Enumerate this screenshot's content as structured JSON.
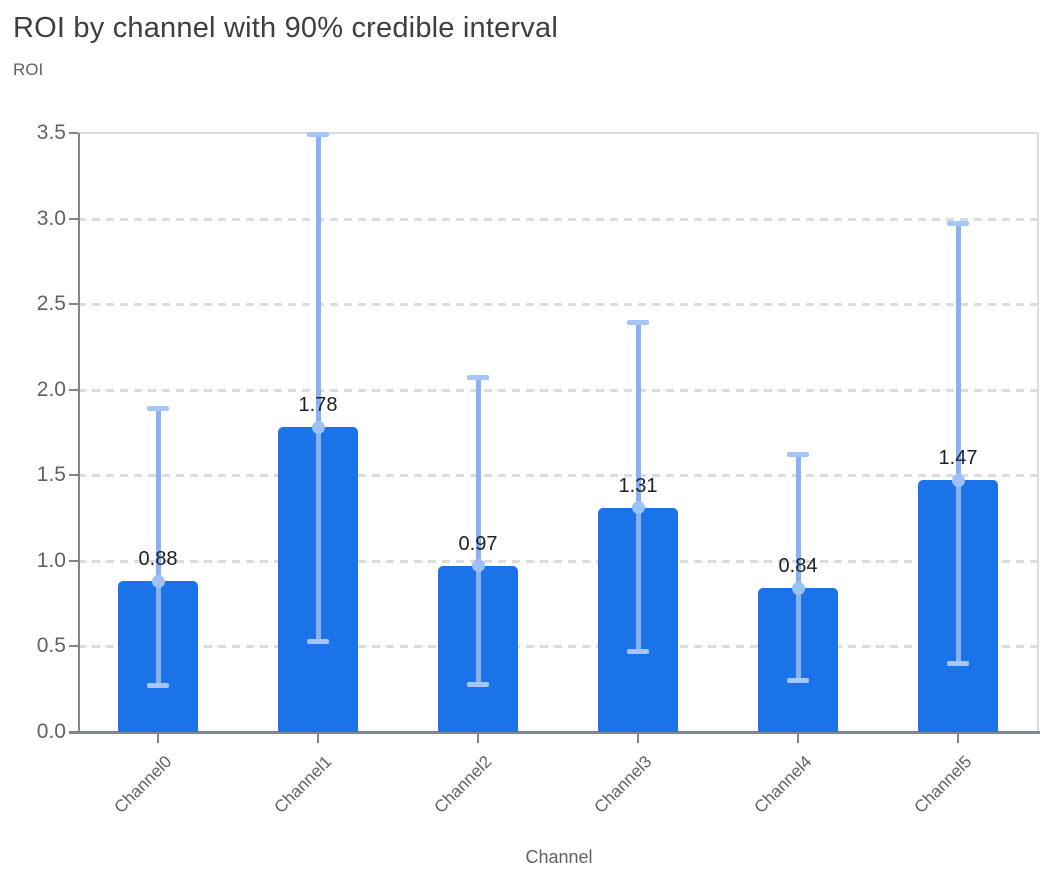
{
  "header": {
    "title": "ROI by channel with 90% credible interval",
    "y_axis_title": "ROI",
    "x_axis_title": "Channel"
  },
  "colors": {
    "bar": "#1a73e8",
    "error_line": "#8ab1f4",
    "error_cap": "#a6c5f9",
    "marker": "#9fc0f7",
    "gridline": "#dadce0",
    "axis": "#80868b",
    "title_text": "#3c4043",
    "axis_text": "#5f6368",
    "value_text": "#202124"
  },
  "chart_data": {
    "type": "bar",
    "title": "ROI by channel with 90% credible interval",
    "xlabel": "Channel",
    "ylabel": "ROI",
    "categories": [
      "Channel0",
      "Channel1",
      "Channel2",
      "Channel3",
      "Channel4",
      "Channel5"
    ],
    "values": [
      0.88,
      1.78,
      0.97,
      1.31,
      0.84,
      1.47
    ],
    "bar_labels": [
      "0.88",
      "1.78",
      "0.97",
      "1.31",
      "0.84",
      "1.47"
    ],
    "error_low": [
      0.27,
      0.53,
      0.28,
      0.47,
      0.3,
      0.4
    ],
    "error_high": [
      1.89,
      3.49,
      2.07,
      2.39,
      1.62,
      2.97
    ],
    "error_bar_meaning": "90% credible interval",
    "ylim": [
      0,
      3.5
    ],
    "yticks": [
      0.0,
      0.5,
      1.0,
      1.5,
      2.0,
      2.5,
      3.0,
      3.5
    ],
    "grid": "horizontal-dashed",
    "legend": "none"
  }
}
